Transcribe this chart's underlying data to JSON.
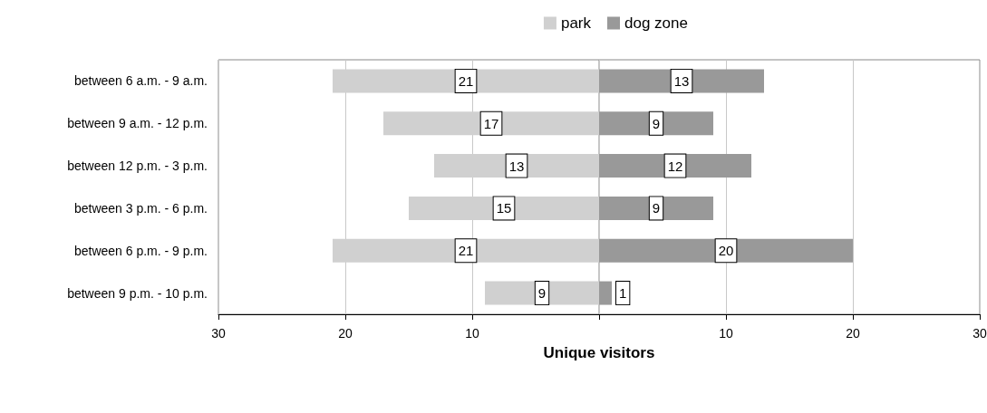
{
  "chart_data": [
    {
      "type": "bar",
      "orientation": "horizontal",
      "xlabel": "Unique visitors",
      "categories": [
        "between 6 a.m. - 9 a.m.",
        "between 9 a.m. - 12 p.m.",
        "between 12 p.m. - 3 p.m.",
        "between 3 p.m. - 6 p.m.",
        "between 6 p.m. - 9 p.m.",
        "between 9 p.m. - 10 p.m."
      ],
      "series": [
        {
          "name": "park",
          "color": "#d0d0d0",
          "values": [
            21,
            17,
            13,
            15,
            21,
            9
          ]
        }
      ],
      "xlim": [
        30,
        0
      ],
      "xticks": [
        30,
        20,
        10,
        {
          "value": 0,
          "label": null
        }
      ],
      "data_labels": true,
      "grid": "x",
      "legend": "top right"
    },
    {
      "type": "bar",
      "orientation": "horizontal",
      "categories": [
        null,
        null,
        null,
        null,
        null,
        null
      ],
      "series": [
        {
          "name": "dog zone",
          "color": "#999999",
          "values": [
            13,
            9,
            12,
            9,
            20,
            1
          ]
        }
      ],
      "xlim": [
        0,
        30
      ],
      "xticks": [
        {
          "value": 0,
          "label": null
        },
        10,
        20,
        30
      ],
      "tick_labels": "x",
      "data_labels": true,
      "grid": "x",
      "legend": "top left"
    }
  ]
}
